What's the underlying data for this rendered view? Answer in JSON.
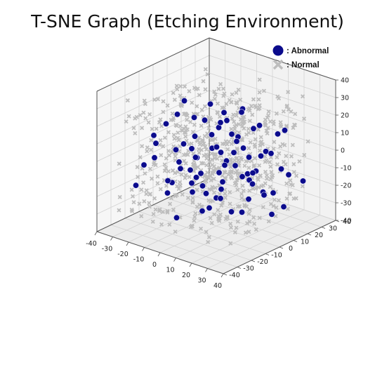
{
  "chart_data": {
    "type": "scatter",
    "projection": "3d",
    "title": "T-SNE Graph (Etching Environment)",
    "xlabel": "",
    "ylabel": "",
    "zlabel": "",
    "xlim": [
      -40,
      40
    ],
    "ylim": [
      -40,
      40
    ],
    "zlim": [
      -40,
      40
    ],
    "xticks": [
      -40,
      -30,
      -20,
      -10,
      0,
      10,
      20,
      30,
      40
    ],
    "yticks": [
      -40,
      -30,
      -20,
      -10,
      0,
      10,
      20,
      30,
      40
    ],
    "zticks": [
      -40,
      -30,
      -20,
      -10,
      0,
      10,
      20,
      30,
      40
    ],
    "grid": true,
    "legend_position": "top-right",
    "series": [
      {
        "name": ": Abnormal",
        "marker": "circle",
        "color": "#0b0b8c",
        "points": [
          [
            -20,
            -22,
            14
          ],
          [
            -14,
            2,
            -6
          ],
          [
            -18,
            6,
            -20
          ],
          [
            -10,
            8,
            6
          ],
          [
            -6,
            14,
            -10
          ],
          [
            -2,
            -6,
            22
          ],
          [
            4,
            -22,
            -6
          ],
          [
            8,
            2,
            14
          ],
          [
            12,
            10,
            -14
          ],
          [
            16,
            -12,
            4
          ],
          [
            20,
            18,
            -22
          ],
          [
            24,
            -4,
            -16
          ],
          [
            26,
            6,
            8
          ],
          [
            30,
            -8,
            -4
          ],
          [
            -26,
            14,
            -2
          ],
          [
            -22,
            -10,
            -24
          ],
          [
            -12,
            -18,
            -12
          ],
          [
            -4,
            20,
            2
          ],
          [
            0,
            0,
            -24
          ],
          [
            6,
            12,
            24
          ],
          [
            10,
            -26,
            12
          ],
          [
            14,
            16,
            -2
          ],
          [
            18,
            -2,
            -26
          ],
          [
            22,
            24,
            12
          ],
          [
            28,
            20,
            -10
          ],
          [
            -30,
            -2,
            10
          ],
          [
            -24,
            24,
            -12
          ],
          [
            -16,
            -26,
            4
          ],
          [
            -8,
            -8,
            -20
          ],
          [
            2,
            26,
            -18
          ],
          [
            34,
            -16,
            6
          ],
          [
            32,
            12,
            -24
          ],
          [
            -4,
            -30,
            -4
          ],
          [
            12,
            -6,
            26
          ],
          [
            -18,
            16,
            18
          ],
          [
            8,
            -14,
            -22
          ],
          [
            -28,
            6,
            -18
          ],
          [
            4,
            8,
            0
          ],
          [
            -12,
            28,
            -6
          ],
          [
            18,
            -20,
            18
          ],
          [
            24,
            -24,
            -8
          ],
          [
            -2,
            4,
            14
          ],
          [
            14,
            28,
            6
          ],
          [
            -20,
            -4,
            -8
          ],
          [
            28,
            -28,
            0
          ],
          [
            -6,
            -22,
            10
          ],
          [
            20,
            4,
            20
          ],
          [
            -14,
            -12,
            24
          ],
          [
            10,
            22,
            -26
          ],
          [
            2,
            -12,
            -12
          ],
          [
            16,
            8,
            -8
          ],
          [
            -24,
            -16,
            6
          ],
          [
            6,
            -30,
            20
          ],
          [
            30,
            28,
            -16
          ],
          [
            -10,
            4,
            -26
          ],
          [
            -26,
            -28,
            -14
          ],
          [
            26,
            -10,
            16
          ],
          [
            0,
            18,
            18
          ],
          [
            -16,
            20,
            -22
          ],
          [
            8,
            -20,
            0
          ],
          [
            22,
            -14,
            -20
          ],
          [
            -8,
            12,
            12
          ],
          [
            12,
            0,
            -2
          ],
          [
            -30,
            18,
            6
          ],
          [
            18,
            26,
            -12
          ],
          [
            -2,
            -26,
            -26
          ],
          [
            32,
            -2,
            -12
          ],
          [
            -20,
            28,
            8
          ],
          [
            4,
            14,
            -16
          ],
          [
            -12,
            -4,
            2
          ],
          [
            24,
            12,
            4
          ],
          [
            16,
            -28,
            -16
          ],
          [
            -4,
            -14,
            -4
          ],
          [
            6,
            24,
            10
          ],
          [
            -22,
            2,
            24
          ],
          [
            28,
            8,
            -28
          ],
          [
            -6,
            30,
            -14
          ],
          [
            10,
            -8,
            8
          ],
          [
            20,
            -18,
            -2
          ],
          [
            -28,
            -20,
            -6
          ]
        ]
      },
      {
        "name": ": Normal",
        "marker": "x",
        "color": "#bdbdbd",
        "count": 650,
        "note": "uniformly distributed points approximately within [-33, 33] on all axes"
      }
    ]
  }
}
